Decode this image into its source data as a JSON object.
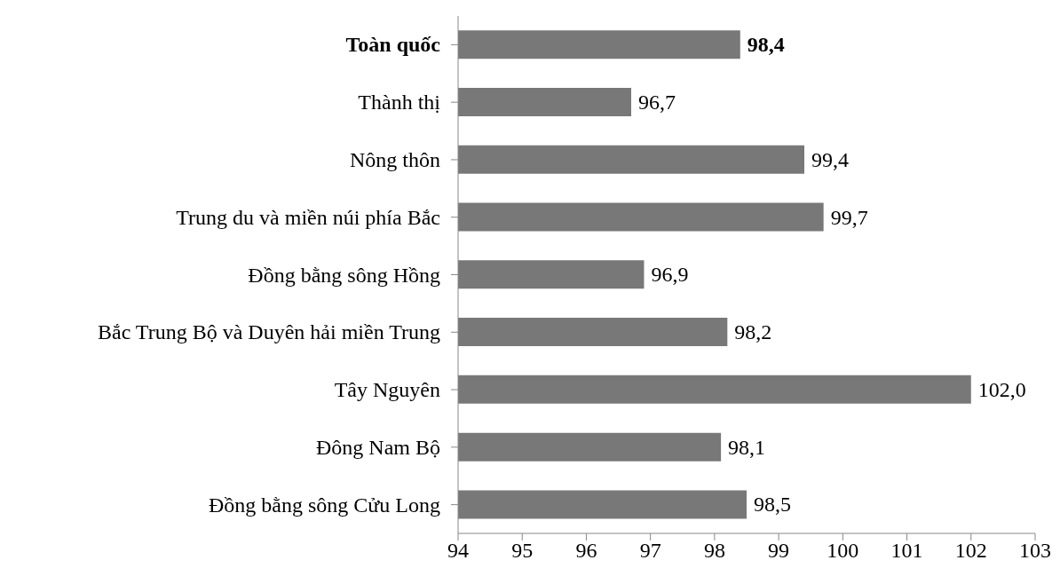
{
  "chart_data": {
    "type": "bar",
    "orientation": "horizontal",
    "categories": [
      "Toàn quốc",
      "Thành thị",
      "Nông thôn",
      "Trung du và miền núi phía Bắc",
      "Đồng bằng sông Hồng",
      "Bắc Trung Bộ và Duyên hải miền Trung",
      "Tây Nguyên",
      "Đông Nam Bộ",
      "Đồng bằng sông Cửu Long"
    ],
    "values": [
      98.4,
      96.7,
      99.4,
      99.7,
      96.9,
      98.2,
      102.0,
      98.1,
      98.5
    ],
    "value_labels": [
      "98,4",
      "96,7",
      "99,4",
      "99,7",
      "96,9",
      "98,2",
      "102,0",
      "98,1",
      "98,5"
    ],
    "color": "#787878",
    "xlim": [
      94,
      103
    ],
    "xticks": [
      94,
      95,
      96,
      97,
      98,
      99,
      100,
      101,
      102,
      103
    ],
    "grid": false,
    "legend": false
  }
}
